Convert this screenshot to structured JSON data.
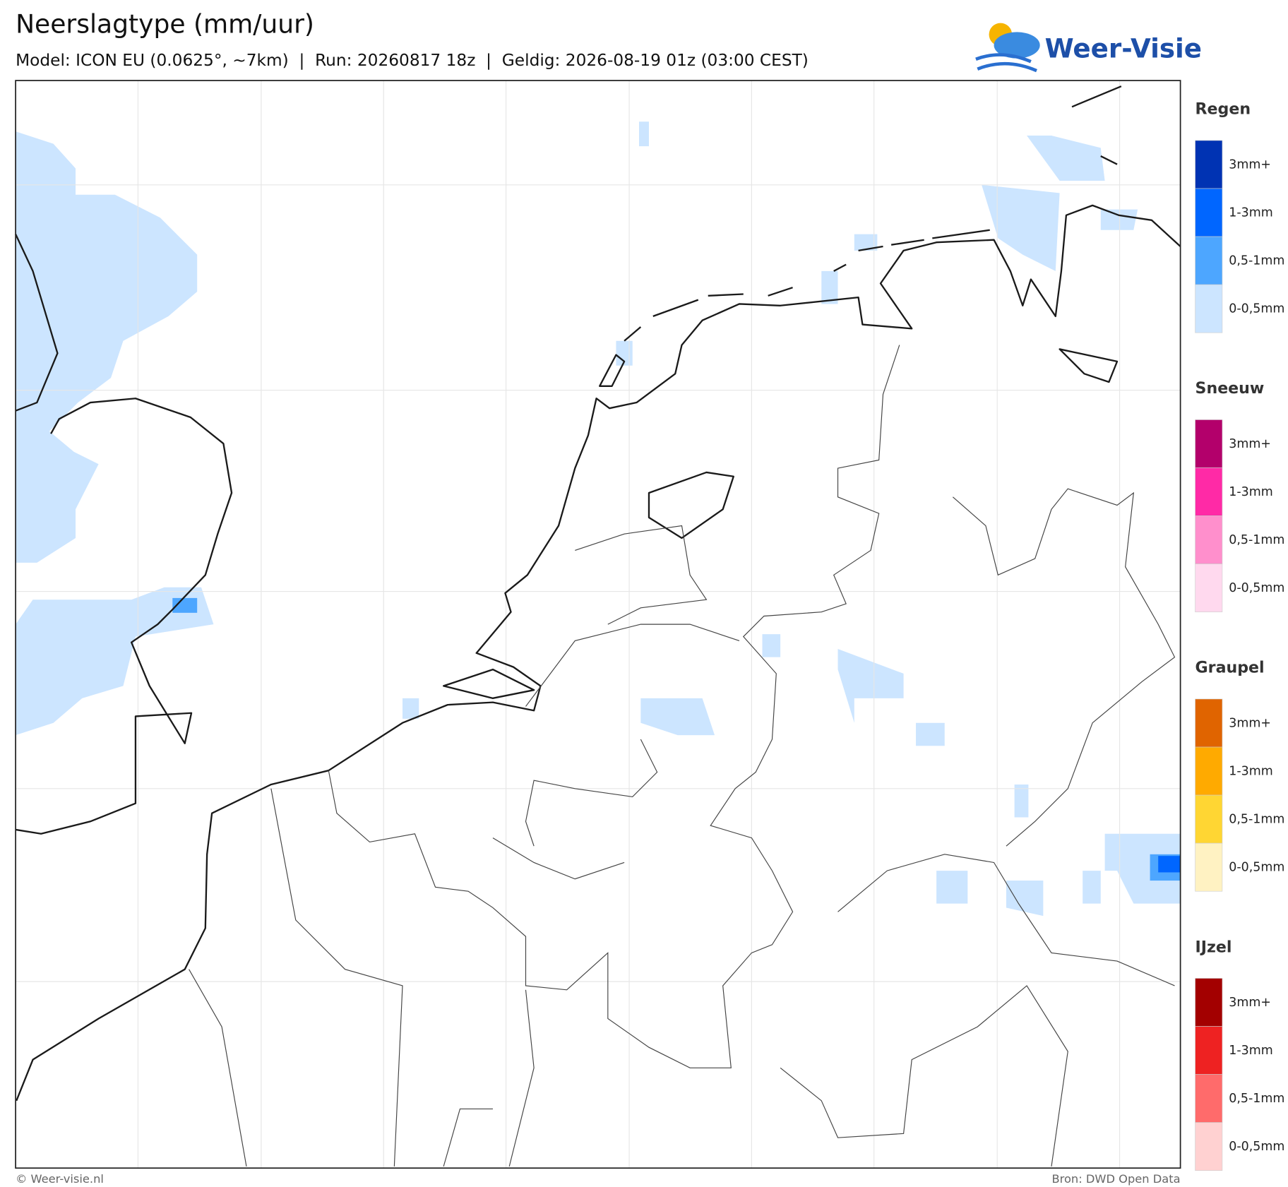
{
  "header": {
    "title": "Neerslagtype (mm/uur)",
    "subtitle": "Model: ICON EU (0.0625°, ~7km)  |  Run: 20260817 18z  |  Geldig: 2026-08-19 01z (03:00 CEST)"
  },
  "logo": {
    "text": "Weer-Visie"
  },
  "legend": [
    {
      "title": "Regen",
      "items": [
        {
          "label": "3mm+",
          "color": "#0033b3"
        },
        {
          "label": "1-3mm",
          "color": "#0066ff"
        },
        {
          "label": "0,5-1mm",
          "color": "#4da6ff"
        },
        {
          "label": "0-0,5mm",
          "color": "#cce5ff"
        }
      ]
    },
    {
      "title": "Sneeuw",
      "items": [
        {
          "label": "3mm+",
          "color": "#b3006b"
        },
        {
          "label": "1-3mm",
          "color": "#ff2aa6"
        },
        {
          "label": "0,5-1mm",
          "color": "#ff8fcc"
        },
        {
          "label": "0-0,5mm",
          "color": "#ffd9ee"
        }
      ]
    },
    {
      "title": "Graupel",
      "items": [
        {
          "label": "3mm+",
          "color": "#e06400"
        },
        {
          "label": "1-3mm",
          "color": "#ffaa00"
        },
        {
          "label": "0,5-1mm",
          "color": "#ffd633"
        },
        {
          "label": "0-0,5mm",
          "color": "#fff2c2"
        }
      ]
    },
    {
      "title": "IJzel",
      "items": [
        {
          "label": "3mm+",
          "color": "#a30000"
        },
        {
          "label": "1-3mm",
          "color": "#ee2222"
        },
        {
          "label": "0,5-1mm",
          "color": "#ff6b6b"
        },
        {
          "label": "0-0,5mm",
          "color": "#ffd1d1"
        }
      ]
    }
  ],
  "footer": {
    "left": "© Weer-visie.nl",
    "right": "Bron: DWD Open Data"
  }
}
